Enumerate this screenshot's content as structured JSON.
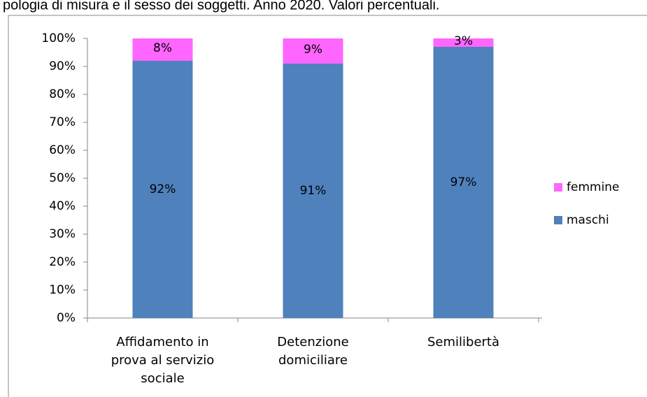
{
  "chart_data": {
    "type": "stacked-bar",
    "title": "pologia di misura e il sesso dei soggetti. Anno 2020. Valori percentuali.",
    "categories": [
      "Affidamento in prova al servizio sociale",
      "Detenzione domiciliare",
      "Semilibertà"
    ],
    "series": [
      {
        "name": "maschi",
        "color": "#4f81bd",
        "values": [
          92,
          91,
          97
        ],
        "value_labels": [
          "92%",
          "91%",
          "97%"
        ]
      },
      {
        "name": "femmine",
        "color": "#ff66ff",
        "values": [
          8,
          9,
          3
        ],
        "value_labels": [
          "8%",
          "9%",
          "3%"
        ]
      }
    ],
    "ylim": [
      0,
      100
    ],
    "yticks": [
      {
        "value": 0,
        "label": "0%"
      },
      {
        "value": 10,
        "label": "10%"
      },
      {
        "value": 20,
        "label": "20%"
      },
      {
        "value": 30,
        "label": "30%"
      },
      {
        "value": 40,
        "label": "40%"
      },
      {
        "value": 50,
        "label": "50%"
      },
      {
        "value": 60,
        "label": "60%"
      },
      {
        "value": 70,
        "label": "70%"
      },
      {
        "value": 80,
        "label": "80%"
      },
      {
        "value": 90,
        "label": "90%"
      },
      {
        "value": 100,
        "label": "100%"
      }
    ],
    "legend": "right"
  }
}
